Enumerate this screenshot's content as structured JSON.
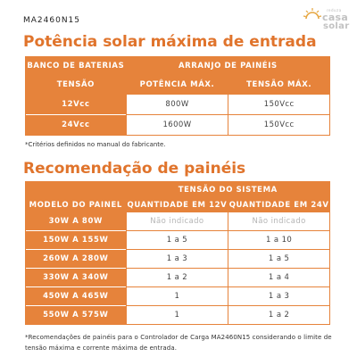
{
  "model_code": "MA2460N15",
  "logo": {
    "top": "reduza",
    "line1": "casa",
    "line2": "solar"
  },
  "section1": {
    "title": "Potência solar máxima de entrada",
    "header_left": "BANCO DE BATERIAS",
    "header_right": "ARRANJO DE PAINÉIS",
    "sub_col1": "TENSÃO",
    "sub_col2": "POTÊNCIA MÁX.",
    "sub_col3": "TENSÃO MÁX.",
    "rows": [
      {
        "voltage": "12Vcc",
        "power": "800W",
        "max_voltage": "150Vcc"
      },
      {
        "voltage": "24Vcc",
        "power": "1600W",
        "max_voltage": "150Vcc"
      }
    ],
    "note": "*Critérios definidos no manual do fabricante."
  },
  "section2": {
    "title": "Recomendação de painéis",
    "header_right": "TENSÃO DO SISTEMA",
    "sub_col1": "MODELO DO PAINEL",
    "sub_col2": "QUANTIDADE EM 12V",
    "sub_col3": "QUANTIDADE EM 24V",
    "rows": [
      {
        "model": "30W A 80W",
        "q12": "Não indicado",
        "q24": "Não indicado"
      },
      {
        "model": "150W A 155W",
        "q12": "1 a 5",
        "q24": "1 a 10"
      },
      {
        "model": "260W A 280W",
        "q12": "1 a 3",
        "q24": "1 a 5"
      },
      {
        "model": "330W A 340W",
        "q12": "1 a 2",
        "q24": "1 a 4"
      },
      {
        "model": "450W A 465W",
        "q12": "1",
        "q24": "1 a 3"
      },
      {
        "model": "550W A 575W",
        "q12": "1",
        "q24": "1 a 2"
      }
    ],
    "note": "*Recomendações de painéis para o Controlador de Carga MA2460N15 considerando o limite de tensão máxima e corrente máxima de entrada."
  },
  "colors": {
    "accent": "#e6833b",
    "title": "#e0742c",
    "muted": "#b5b5b5"
  }
}
